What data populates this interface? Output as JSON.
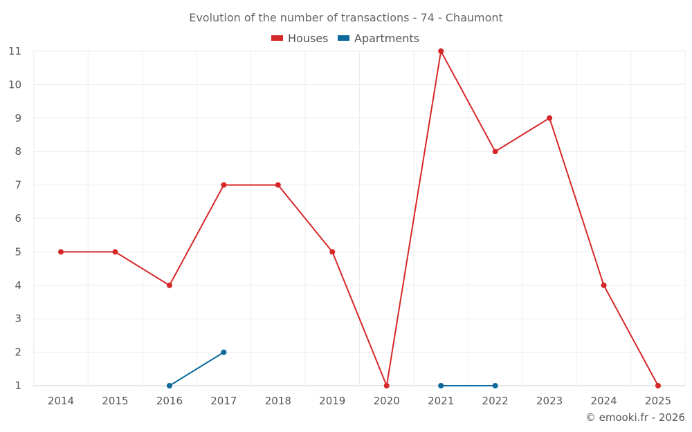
{
  "chart_data": {
    "type": "line",
    "title": "Evolution of the number of transactions - 74 - Chaumont",
    "x": [
      "2014",
      "2015",
      "2016",
      "2017",
      "2018",
      "2019",
      "2020",
      "2021",
      "2022",
      "2023",
      "2024",
      "2025"
    ],
    "ylim": [
      1,
      11
    ],
    "yticks": [
      1,
      2,
      3,
      4,
      5,
      6,
      7,
      8,
      9,
      10,
      11
    ],
    "grid": true,
    "legend_position": "top-center",
    "series": [
      {
        "name": "Houses",
        "color": "#d62728",
        "values": [
          5,
          5,
          4,
          7,
          7,
          5,
          1,
          11,
          8,
          9,
          4,
          1
        ]
      },
      {
        "name": "Apartments",
        "color": "#0b6a9a",
        "values": [
          null,
          null,
          1,
          2,
          null,
          null,
          null,
          1,
          1,
          null,
          null,
          null
        ]
      }
    ]
  },
  "credit": "© emooki.fr - 2026"
}
